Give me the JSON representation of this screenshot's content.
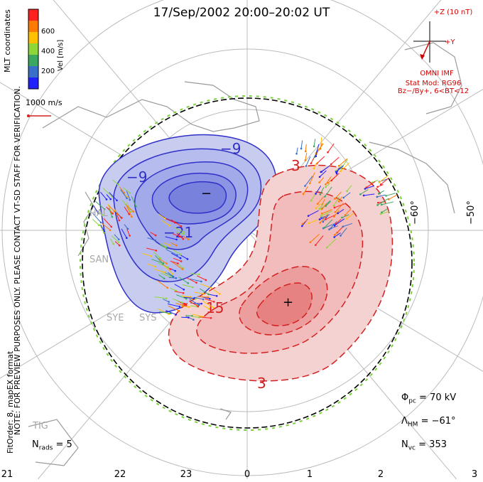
{
  "title": "17/Sep/2002 20:00–20:02 UT",
  "colorbar": {
    "label": "Vel [m/s]",
    "ticks": [
      "600",
      "400",
      "200"
    ],
    "colors": [
      "#ff2020",
      "#ff7a00",
      "#ffc000",
      "#8fd63a",
      "#3aa860",
      "#3a6fc8",
      "#2020ff"
    ]
  },
  "coordinates_label": "MLT coordinates",
  "vector_scale_label": "1000 m/s",
  "side_note": "NOTE: FOR PREVIEW PURPOSES ONLY. PLEASE CONTACT VT-SD STAFF FOR VERIFICATION.",
  "fit_label": "FitOrder: 8, mapEX format",
  "imf": {
    "z_label": "+Z (10 nT)",
    "y_label": "+Y",
    "source": "OMNI IMF",
    "model": "Stat Mod: RG96",
    "condition": "Bz−/By+, 6<BT<12"
  },
  "stats": {
    "phi_symbol": "Φ",
    "phi_sub": "pc",
    "phi_value": "= 70 kV",
    "lambda_symbol": "Λ",
    "lambda_sub": "HM",
    "lambda_value": "= −61°",
    "nvc_symbol": "N",
    "nvc_sub": "vc",
    "nvc_value": "= 353",
    "nrads_symbol": "N",
    "nrads_sub": "rads",
    "nrads_value": "= 5"
  },
  "latitude_labels": [
    "−60°",
    "−50°"
  ],
  "mlt_labels": [
    "21",
    "22",
    "23",
    "0",
    "1",
    "2",
    "3"
  ],
  "contour_labels": {
    "neg_outer": "−9",
    "neg_left": "−9",
    "neg_inner": "−21",
    "pos_top": "3",
    "pos_mid": "15",
    "pos_bottom": "3"
  },
  "potential_markers": {
    "min": "−",
    "max": "+"
  },
  "station_labels": [
    "HAL",
    "SAN",
    "SYE",
    "SYS",
    "TIG"
  ],
  "colors": {
    "negative": "#3030c8",
    "positive": "#d42020",
    "imf": "#d40000"
  }
}
